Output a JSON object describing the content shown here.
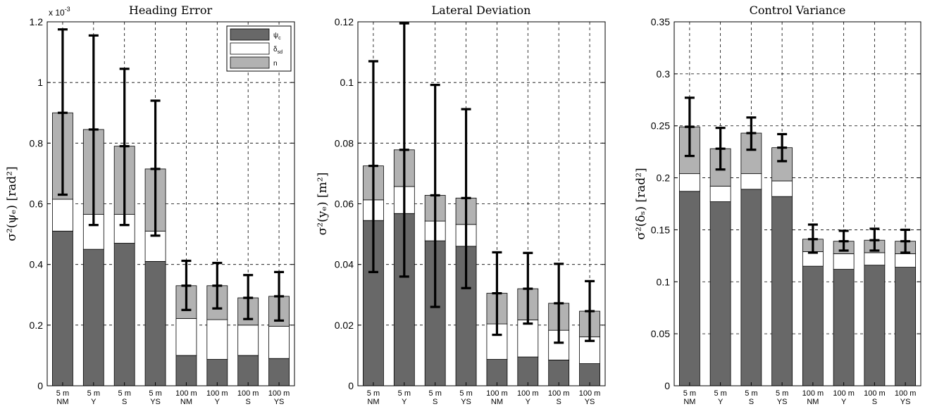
{
  "colors": {
    "psi_c": "#686868",
    "delta_sd": "#ffffff",
    "n": "#b2b2b2",
    "axis": "#000000",
    "errorbar": "#000000"
  },
  "chart_data": [
    {
      "type": "bar",
      "stacked": true,
      "title": "Heading Error",
      "ylabel": "σ²(ψₑ) [rad²]",
      "ylim": [
        0,
        0.0012
      ],
      "yticks": [
        0,
        0.0002,
        0.0004,
        0.0006,
        0.0008,
        0.001,
        0.0012
      ],
      "ytick_labels": [
        "0",
        "0.2",
        "0.4",
        "0.6",
        "0.8",
        "1",
        "1.2"
      ],
      "multiplier": "x 10",
      "multiplier_exp": "-3",
      "grid": true,
      "legend": "top-right",
      "categories": [
        [
          "5 m",
          "NM"
        ],
        [
          "5 m",
          "Y"
        ],
        [
          "5 m",
          "S"
        ],
        [
          "5 m",
          "YS"
        ],
        [
          "100 m",
          "NM"
        ],
        [
          "100 m",
          "Y"
        ],
        [
          "100 m",
          "S"
        ],
        [
          "100 m",
          "YS"
        ]
      ],
      "series": [
        {
          "name": "ψ",
          "sub": "c",
          "key": "psi_c",
          "values": [
            0.00051,
            0.00045,
            0.00047,
            0.00041,
            0.0001,
            8.7e-05,
            0.0001,
            9e-05
          ]
        },
        {
          "name": "δ",
          "sub": "sd",
          "key": "delta_sd",
          "values": [
            0.000105,
            0.000115,
            9.5e-05,
            0.0001,
            0.000122,
            0.000131,
            0.0001,
            0.000106
          ]
        },
        {
          "name": "n",
          "sub": "",
          "key": "n",
          "values": [
            0.000285,
            0.00028,
            0.000225,
            0.000205,
            0.000108,
            0.000112,
            9e-05,
            9.9e-05
          ]
        }
      ],
      "error_low": [
        0.00063,
        0.00053,
        0.00053,
        0.000495,
        0.00025,
        0.000255,
        0.00022,
        0.000215
      ],
      "error_high": [
        0.001175,
        0.001155,
        0.001045,
        0.00094,
        0.000412,
        0.000405,
        0.000365,
        0.000375
      ]
    },
    {
      "type": "bar",
      "stacked": true,
      "title": "Lateral Deviation",
      "ylabel": "σ²(yₑ) [m²]",
      "ylim": [
        0,
        0.12
      ],
      "yticks": [
        0,
        0.02,
        0.04,
        0.06,
        0.08,
        0.1,
        0.12
      ],
      "ytick_labels": [
        "0",
        "0.02",
        "0.04",
        "0.06",
        "0.08",
        "0.1",
        "0.12"
      ],
      "grid": true,
      "categories": [
        [
          "5 m",
          "NM"
        ],
        [
          "5 m",
          "Y"
        ],
        [
          "5 m",
          "S"
        ],
        [
          "5 m",
          "YS"
        ],
        [
          "100 m",
          "NM"
        ],
        [
          "100 m",
          "Y"
        ],
        [
          "100 m",
          "S"
        ],
        [
          "100 m",
          "YS"
        ]
      ],
      "series": [
        {
          "key": "psi_c",
          "values": [
            0.0545,
            0.0568,
            0.0478,
            0.046,
            0.0087,
            0.0095,
            0.0085,
            0.0073
          ]
        },
        {
          "key": "delta_sd",
          "values": [
            0.0068,
            0.0089,
            0.0065,
            0.0072,
            0.0117,
            0.0122,
            0.0098,
            0.0088
          ]
        },
        {
          "key": "n",
          "values": [
            0.0112,
            0.0121,
            0.0085,
            0.0087,
            0.0101,
            0.0103,
            0.0089,
            0.0085
          ]
        }
      ],
      "error_low": [
        0.0375,
        0.036,
        0.026,
        0.0322,
        0.0168,
        0.0205,
        0.0142,
        0.0148
      ],
      "error_high": [
        0.107,
        0.1195,
        0.0992,
        0.0912,
        0.044,
        0.0438,
        0.0402,
        0.0345
      ]
    },
    {
      "type": "bar",
      "stacked": true,
      "title": "Control Variance",
      "ylabel": "σ²(δₛ) [rad²]",
      "ylim": [
        0,
        0.35
      ],
      "yticks": [
        0,
        0.05,
        0.1,
        0.15,
        0.2,
        0.25,
        0.3,
        0.35
      ],
      "ytick_labels": [
        "0",
        "0.05",
        "0.1",
        "0.15",
        "0.2",
        "0.25",
        "0.3",
        "0.35"
      ],
      "grid": true,
      "categories": [
        [
          "5 m",
          "NM"
        ],
        [
          "5 m",
          "Y"
        ],
        [
          "5 m",
          "S"
        ],
        [
          "5 m",
          "YS"
        ],
        [
          "100 m",
          "NM"
        ],
        [
          "100 m",
          "Y"
        ],
        [
          "100 m",
          "S"
        ],
        [
          "100 m",
          "YS"
        ]
      ],
      "series": [
        {
          "key": "psi_c",
          "values": [
            0.187,
            0.177,
            0.189,
            0.182,
            0.115,
            0.112,
            0.116,
            0.114
          ]
        },
        {
          "key": "delta_sd",
          "values": [
            0.017,
            0.015,
            0.015,
            0.015,
            0.014,
            0.015,
            0.012,
            0.013
          ]
        },
        {
          "key": "n",
          "values": [
            0.045,
            0.036,
            0.039,
            0.032,
            0.012,
            0.012,
            0.012,
            0.012
          ]
        }
      ],
      "error_low": [
        0.221,
        0.208,
        0.227,
        0.216,
        0.128,
        0.13,
        0.13,
        0.128
      ],
      "error_high": [
        0.277,
        0.248,
        0.258,
        0.242,
        0.155,
        0.149,
        0.151,
        0.15
      ]
    }
  ]
}
